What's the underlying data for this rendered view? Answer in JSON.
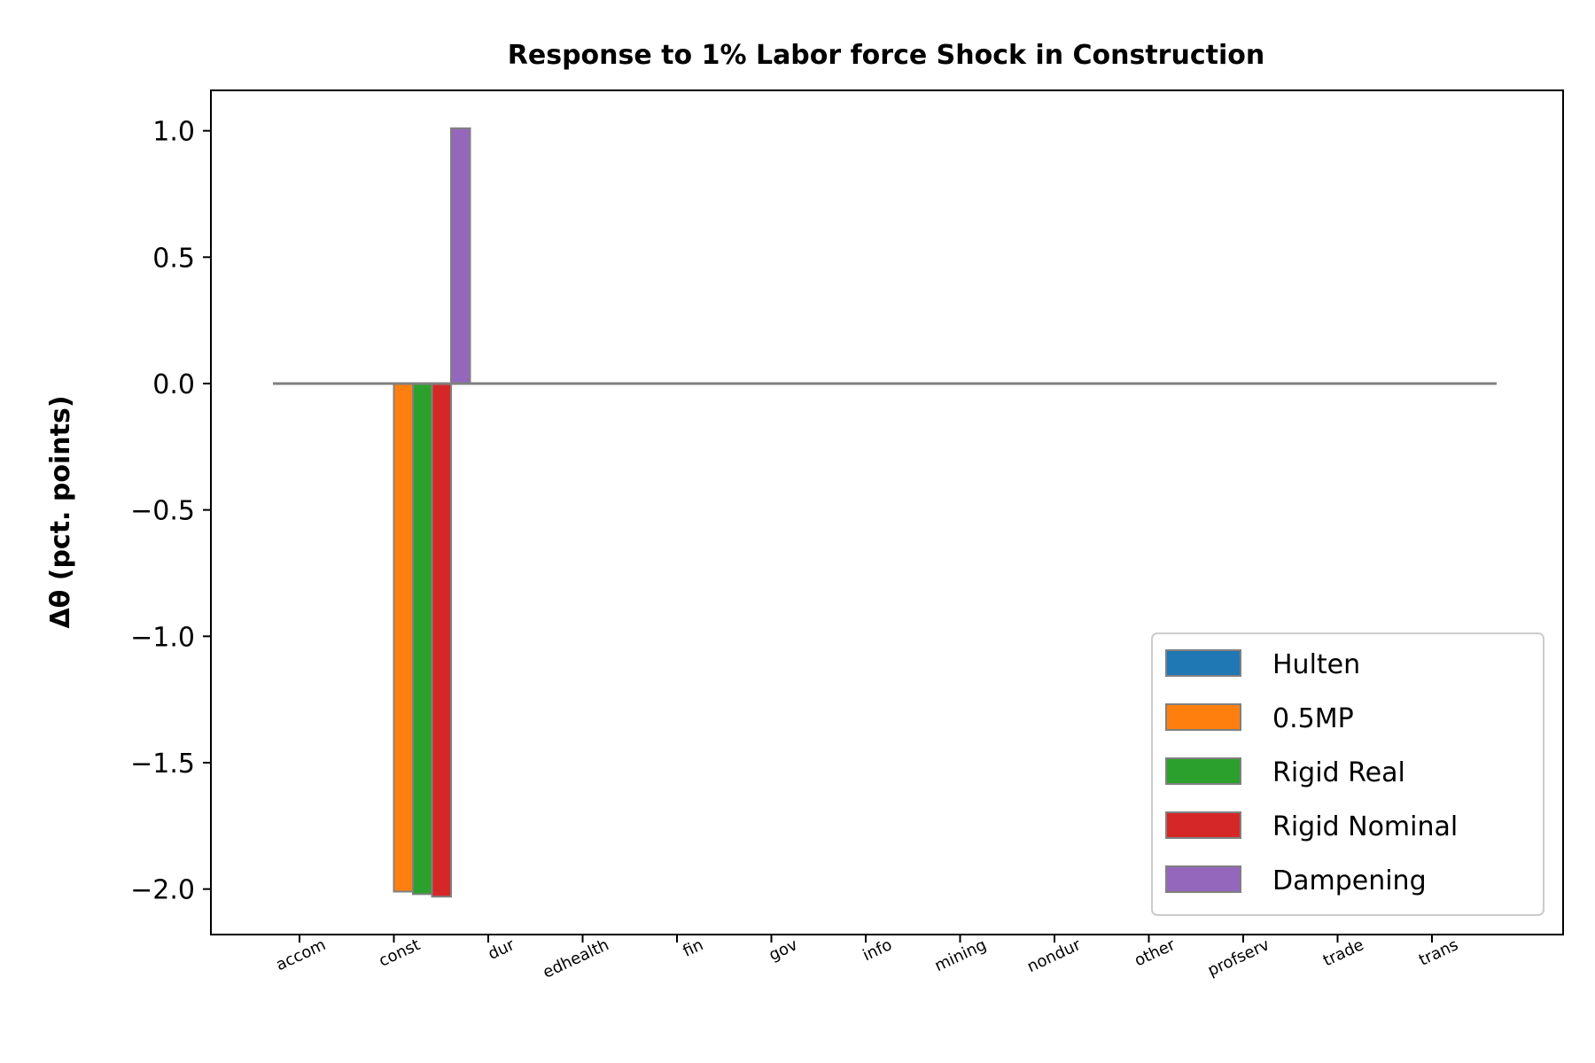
{
  "chart_data": {
    "type": "bar",
    "title": "Response to 1% Labor force Shock in Construction",
    "xlabel": "",
    "ylabel": "Δθ  (pct. points)",
    "ylim": [
      -2.18,
      1.16
    ],
    "yticks": [
      1.0,
      0.5,
      0.0,
      -0.5,
      -1.0,
      -1.5,
      -2.0
    ],
    "ytick_labels": [
      "1.0",
      "0.5",
      "0.0",
      "−0.5",
      "−1.0",
      "−1.5",
      "−2.0"
    ],
    "categories": [
      "accom",
      "const",
      "dur",
      "edhealth",
      "fin",
      "gov",
      "info",
      "mining",
      "nondur",
      "other",
      "profserv",
      "trade",
      "trans"
    ],
    "series": [
      {
        "name": "Hulten",
        "color": "#1f77b4",
        "values": [
          0,
          0,
          0,
          0,
          0,
          0,
          0,
          0,
          0,
          0,
          0,
          0,
          0
        ]
      },
      {
        "name": "0.5MP",
        "color": "#ff7f0e",
        "values": [
          0,
          -2.01,
          0,
          0,
          0,
          0,
          0,
          0,
          0,
          0,
          0,
          0,
          0
        ]
      },
      {
        "name": "Rigid Real",
        "color": "#2ca02c",
        "values": [
          0,
          -2.02,
          0,
          0,
          0,
          0,
          0,
          0,
          0,
          0,
          0,
          0,
          0
        ]
      },
      {
        "name": "Rigid Nominal",
        "color": "#d62728",
        "values": [
          0,
          -2.03,
          0,
          0,
          0,
          0,
          0,
          0,
          0,
          0,
          0,
          0,
          0
        ]
      },
      {
        "name": "Dampening",
        "color": "#9467bd",
        "values": [
          0,
          1.01,
          0,
          0,
          0,
          0,
          0,
          0,
          0,
          0,
          0,
          0,
          0
        ]
      }
    ],
    "bar_edge_color": "#808080",
    "zero_line_color": "#808080",
    "legend_position": "lower-right",
    "grid": false
  }
}
